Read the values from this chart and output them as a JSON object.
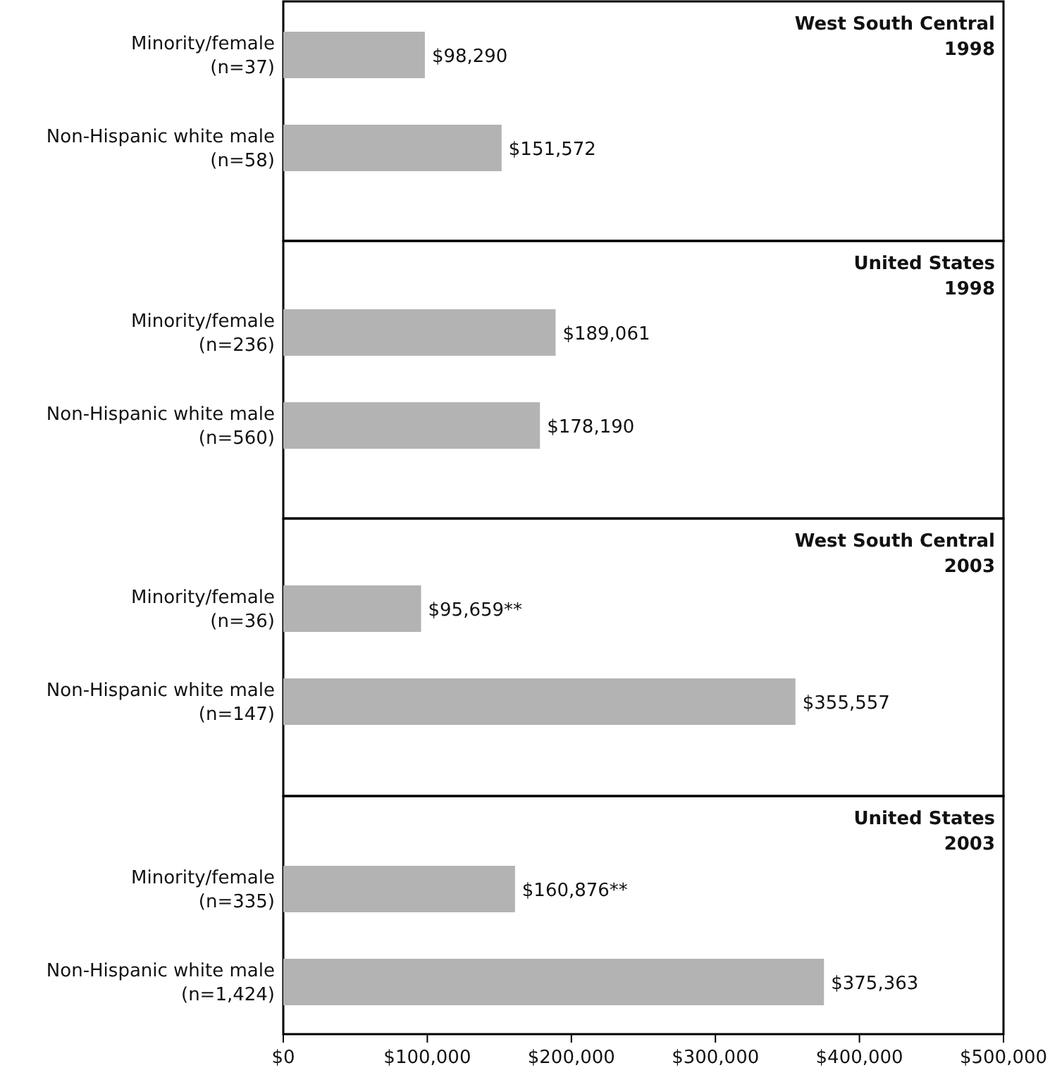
{
  "chart_data": [
    {
      "type": "bar",
      "orientation": "horizontal",
      "title": "West South Central",
      "subtitle": "1998",
      "categories": [
        "Minority/female (n=37)",
        "Non-Hispanic white male (n=58)"
      ],
      "values": [
        98290,
        151572
      ],
      "value_labels": [
        "$98,290",
        "$151,572"
      ],
      "color": "#b3b3b3",
      "xlim": [
        0,
        500000
      ],
      "tick_labels": "y"
    },
    {
      "type": "bar",
      "orientation": "horizontal",
      "title": "United States",
      "subtitle": "1998",
      "categories": [
        "Minority/female (n=236)",
        "Non-Hispanic white male (n=560)"
      ],
      "values": [
        189061,
        178190
      ],
      "value_labels": [
        "$189,061",
        "$178,190"
      ],
      "color": "#b3b3b3",
      "xlim": [
        0,
        500000
      ],
      "tick_labels": "y"
    },
    {
      "type": "bar",
      "orientation": "horizontal",
      "title": "West South Central",
      "subtitle": "2003",
      "categories": [
        "Minority/female (n=36)",
        "Non-Hispanic white male (n=147)"
      ],
      "values": [
        95659,
        355557
      ],
      "value_labels": [
        "$95,659**",
        "$355,557"
      ],
      "color": "#b3b3b3",
      "xlim": [
        0,
        500000
      ],
      "tick_labels": "y"
    },
    {
      "type": "bar",
      "orientation": "horizontal",
      "title": "United States",
      "subtitle": "2003",
      "categories": [
        "Minority/female (n=335)",
        "Non-Hispanic white male (n=1,424)"
      ],
      "values": [
        160876,
        375363
      ],
      "value_labels": [
        "$160,876**",
        "$375,363"
      ],
      "color": "#b3b3b3",
      "xlim": [
        0,
        500000
      ],
      "xticks": [
        {
          "value": 0,
          "label": "$0"
        },
        {
          "value": 100000,
          "label": "$100,000"
        },
        {
          "value": 200000,
          "label": "$200,000"
        },
        {
          "value": 300000,
          "label": "$300,000"
        },
        {
          "value": 400000,
          "label": "$400,000"
        },
        {
          "value": 500000,
          "label": "$500,000"
        }
      ]
    }
  ]
}
